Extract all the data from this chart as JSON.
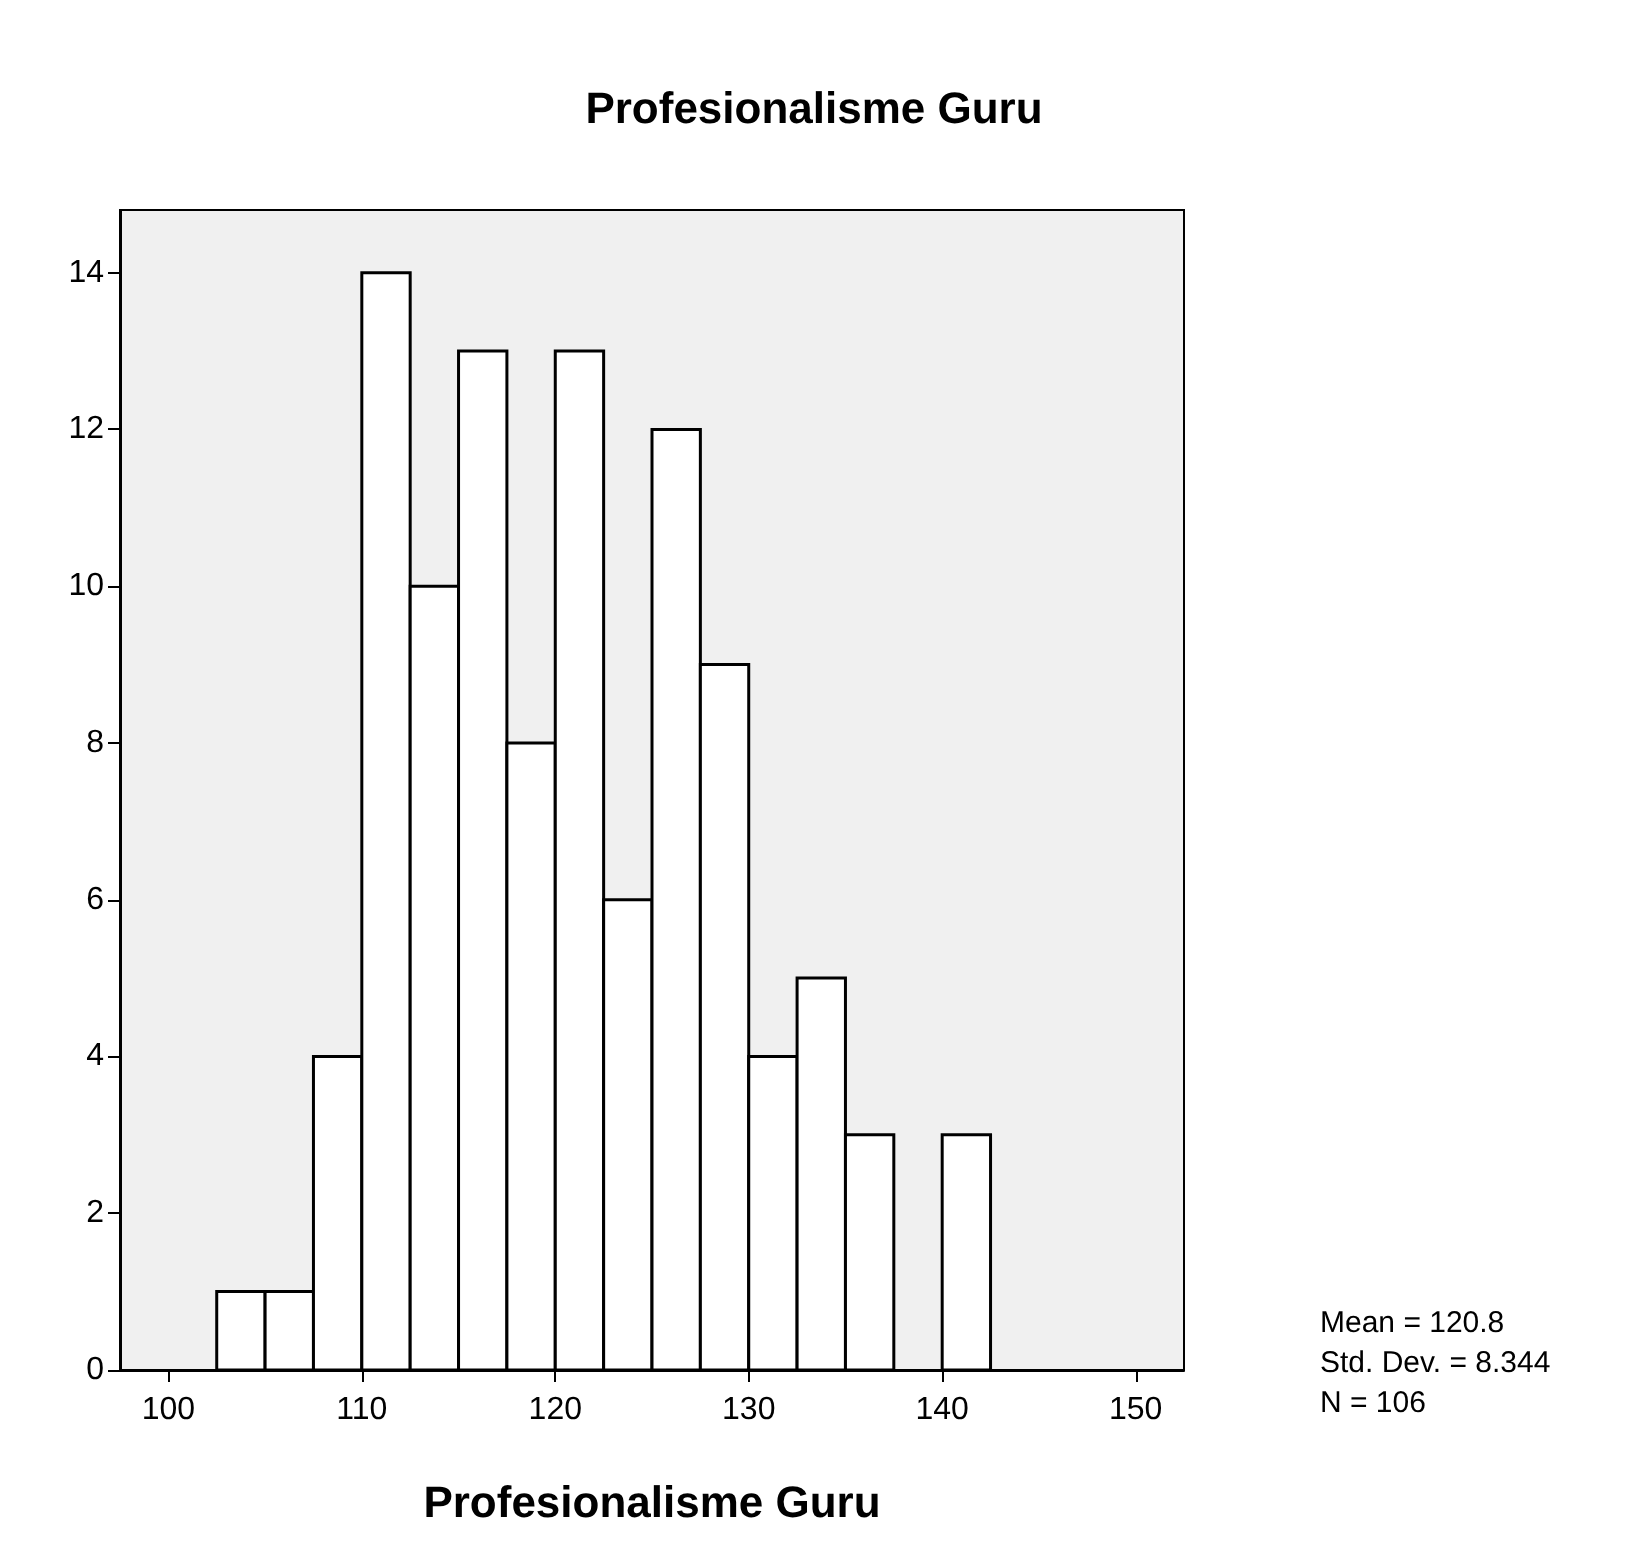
{
  "chart_data": {
    "type": "histogram",
    "title": "Profesionalisme Guru",
    "xlabel": "Profesionalisme Guru",
    "bins": [
      102.5,
      105,
      107.5,
      110,
      112.5,
      115,
      117.5,
      120,
      122.5,
      125,
      127.5,
      130,
      132.5,
      135,
      137.5,
      140,
      142.5
    ],
    "values": [
      1,
      1,
      4,
      14,
      10,
      13,
      8,
      13,
      6,
      12,
      9,
      4,
      5,
      3,
      0,
      3
    ],
    "color": "#ffffff",
    "xlim": [
      97.5,
      152.5
    ],
    "xticks": [
      100,
      110,
      120,
      130,
      140,
      150
    ],
    "ylim": [
      0,
      14.8
    ],
    "yticks": [
      0,
      2,
      4,
      6,
      8,
      10,
      12,
      14
    ],
    "grid": false,
    "annotations": [
      "Mean = 120.8",
      "Std. Dev. = 8.344",
      "N = 106"
    ]
  }
}
